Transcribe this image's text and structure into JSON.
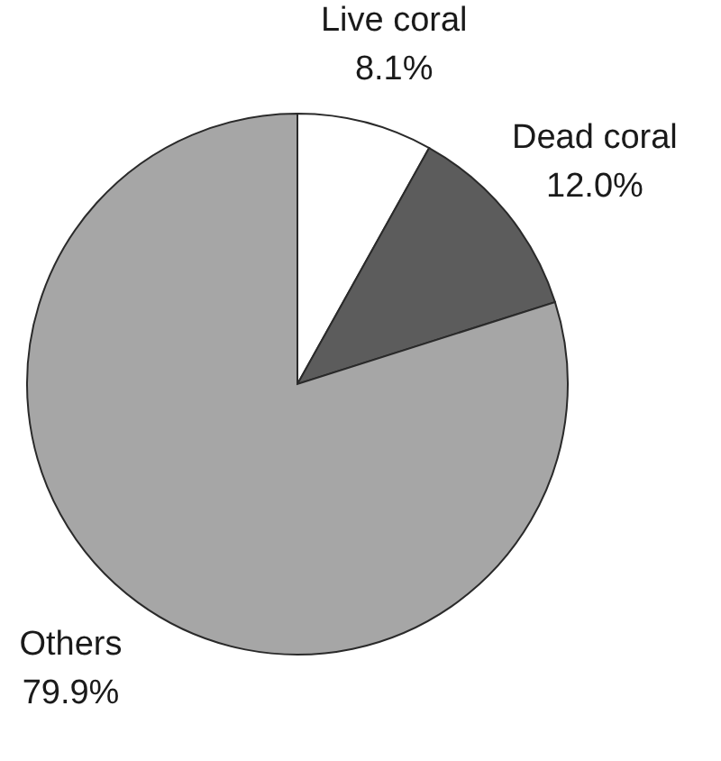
{
  "chart_data": {
    "type": "pie",
    "categories": [
      "Live coral",
      "Dead coral",
      "Others"
    ],
    "values": [
      8.1,
      12.0,
      79.9
    ],
    "colors": [
      "#ffffff",
      "#5c5c5c",
      "#a6a6a6"
    ],
    "value_labels": [
      "8.1%",
      "12.0%",
      "79.9%"
    ]
  }
}
